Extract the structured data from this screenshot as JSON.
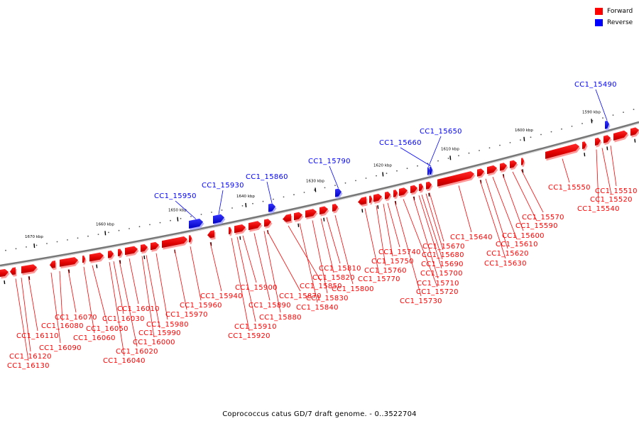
{
  "legend": {
    "forward_label": "Forward",
    "reverse_label": "Reverse",
    "forward_color": "#ff0000",
    "reverse_color": "#0000ff"
  },
  "caption": "Coprococcus catus GD/7 draft genome. - 0..3522704",
  "ticks": [
    "1590 kbp",
    "1600 kbp",
    "1610 kbp",
    "1620 kbp",
    "1630 kbp",
    "1640 kbp",
    "1650 kbp",
    "1660 kbp",
    "1670 kbp"
  ],
  "reverse_genes": [
    "CC1_15490",
    "CC1_15650",
    "CC1_15660",
    "CC1_15790",
    "CC1_15860",
    "CC1_15930",
    "CC1_15950"
  ],
  "forward_genes": [
    "CC1_15510",
    "CC1_15520",
    "CC1_15540",
    "CC1_15550",
    "CC1_15570",
    "CC1_15590",
    "CC1_15600",
    "CC1_15610",
    "CC1_15620",
    "CC1_15630",
    "CC1_15640",
    "CC1_15670",
    "CC1_15680",
    "CC1_15690",
    "CC1_15700",
    "CC1_15710",
    "CC1_15720",
    "CC1_15730",
    "CC1_15740",
    "CC1_15750",
    "CC1_15760",
    "CC1_15770",
    "CC1_15800",
    "CC1_15810",
    "CC1_15820",
    "CC1_15830",
    "CC1_15840",
    "CC1_15850",
    "CC1_15870",
    "CC1_15880",
    "CC1_15890",
    "CC1_15900",
    "CC1_15910",
    "CC1_15920",
    "CC1_15940",
    "CC1_15960",
    "CC1_15970",
    "CC1_15980",
    "CC1_15990",
    "CC1_16000",
    "CC1_16010",
    "CC1_16020",
    "CC1_16030",
    "CC1_16040",
    "CC1_16050",
    "CC1_16060",
    "CC1_16070",
    "CC1_16080",
    "CC1_16090",
    "CC1_16110",
    "CC1_16120",
    "CC1_16130"
  ]
}
